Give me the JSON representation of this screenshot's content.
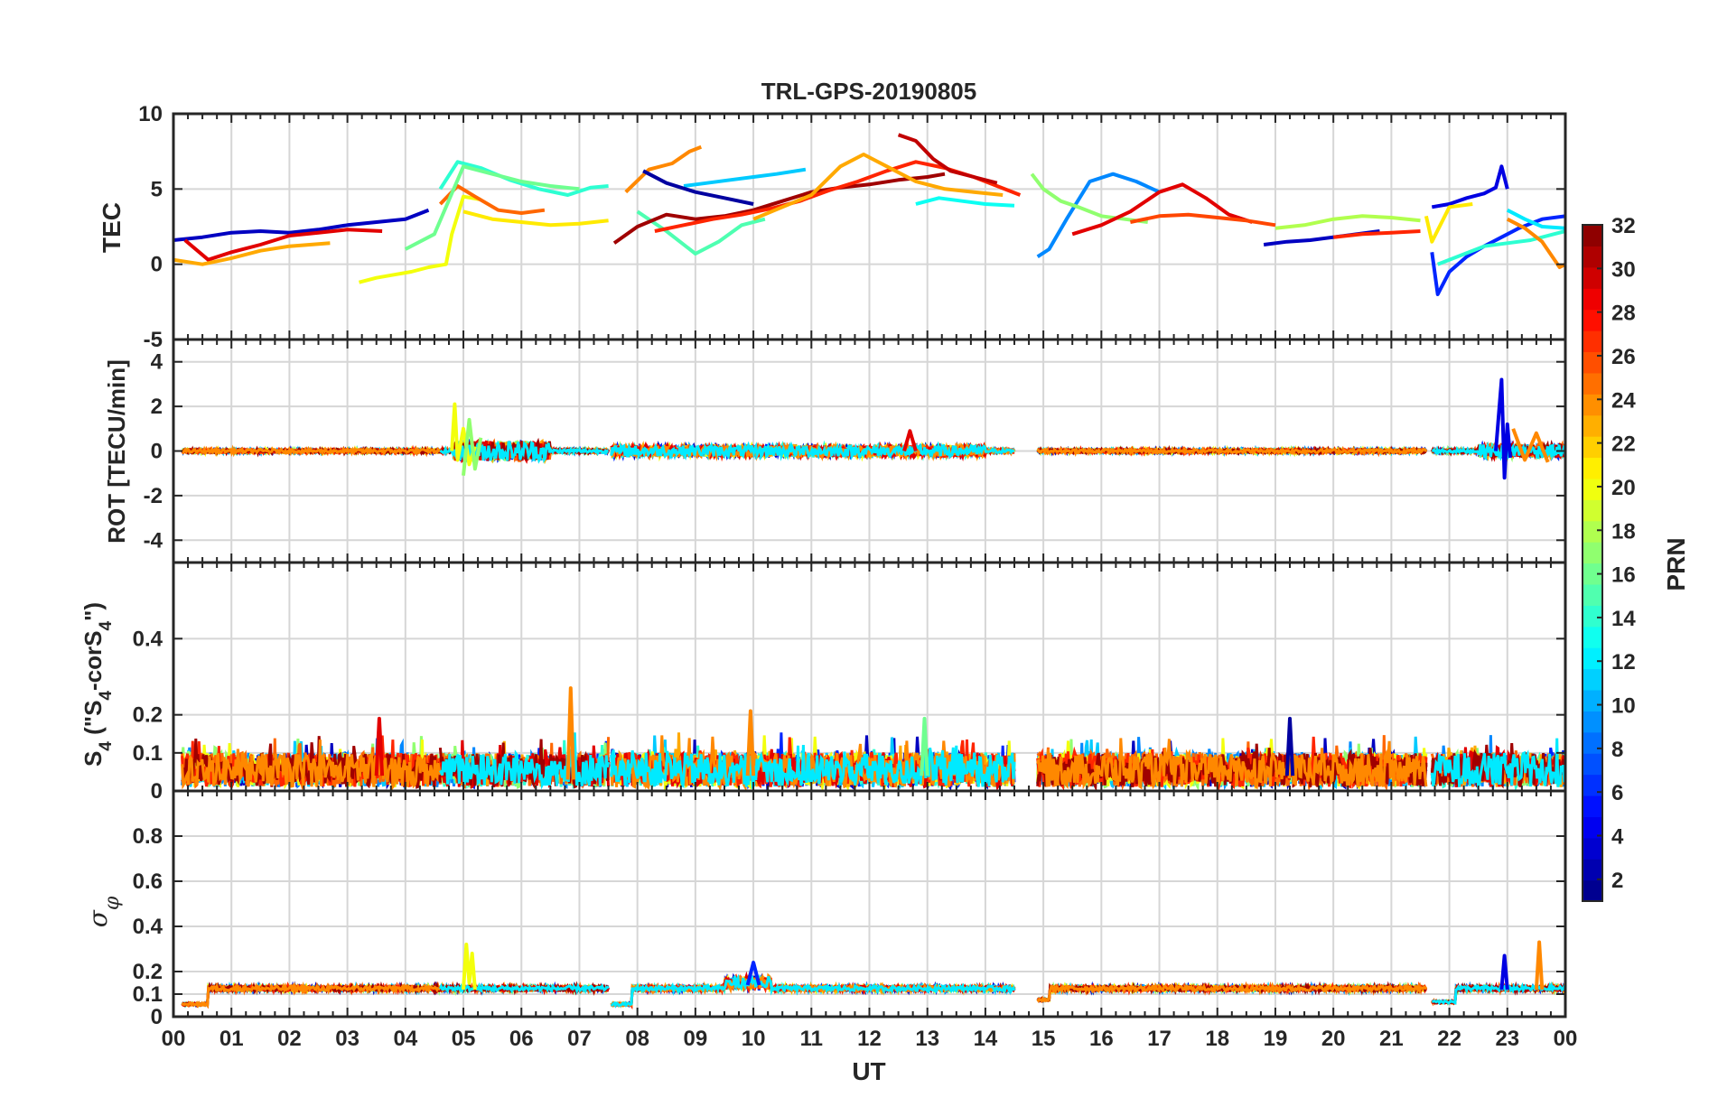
{
  "chart_data": {
    "type": "line",
    "title": "TRL-GPS-20190805",
    "x_axis": {
      "label": "UT",
      "ticks": [
        "00",
        "01",
        "02",
        "03",
        "04",
        "05",
        "06",
        "07",
        "08",
        "09",
        "10",
        "11",
        "12",
        "13",
        "14",
        "15",
        "16",
        "17",
        "18",
        "19",
        "20",
        "21",
        "22",
        "23",
        "00"
      ],
      "range_hours": [
        0,
        24
      ]
    },
    "colorbar": {
      "label": "PRN",
      "range": [
        1,
        32
      ],
      "ticks": [
        "32",
        "30",
        "28",
        "26",
        "24",
        "22",
        "20",
        "18",
        "16",
        "14",
        "12",
        "10",
        "8",
        "6",
        "4",
        "2"
      ],
      "colormap": "jet"
    },
    "panels": [
      {
        "id": "tec",
        "ylabel": "TEC",
        "ylim": [
          -5,
          10
        ],
        "yticks": [
          "10",
          "5",
          "0",
          "-5"
        ],
        "grid": true,
        "series": [
          {
            "prn": 3,
            "x": [
              0.0,
              0.5,
              1.0,
              1.5,
              2.0,
              2.5,
              3.0,
              3.5,
              4.0,
              4.4
            ],
            "y": [
              1.6,
              1.8,
              2.1,
              2.2,
              2.1,
              2.3,
              2.6,
              2.8,
              3.0,
              3.6
            ]
          },
          {
            "prn": 29,
            "x": [
              0.2,
              0.6,
              1.0,
              1.5,
              2.0,
              2.5,
              3.0,
              3.6
            ],
            "y": [
              1.6,
              0.3,
              0.8,
              1.3,
              1.9,
              2.1,
              2.3,
              2.2
            ]
          },
          {
            "prn": 23,
            "x": [
              0.0,
              0.5,
              1.0,
              1.5,
              2.0,
              2.7
            ],
            "y": [
              0.3,
              0.0,
              0.4,
              0.9,
              1.2,
              1.4
            ]
          },
          {
            "prn": 20,
            "x": [
              3.2,
              3.5,
              3.8,
              4.1,
              4.4,
              4.7,
              4.8,
              5.0,
              5.3
            ],
            "y": [
              -1.2,
              -0.9,
              -0.7,
              -0.5,
              -0.2,
              0.0,
              2.0,
              4.5,
              4.3
            ]
          },
          {
            "prn": 14,
            "x": [
              4.6,
              4.9,
              5.3,
              5.8,
              6.3,
              6.8,
              7.2,
              7.5
            ],
            "y": [
              5.0,
              6.8,
              6.4,
              5.6,
              5.0,
              4.6,
              5.1,
              5.2
            ]
          },
          {
            "prn": 25,
            "x": [
              4.6,
              4.9,
              5.2,
              5.6,
              6.0,
              6.4
            ],
            "y": [
              4.0,
              5.2,
              4.5,
              3.6,
              3.4,
              3.6
            ]
          },
          {
            "prn": 16,
            "x": [
              4.0,
              4.5,
              5.0,
              5.5,
              6.0,
              6.5,
              7.0
            ],
            "y": [
              1.0,
              2.0,
              6.5,
              6.0,
              5.5,
              5.2,
              5.0
            ]
          },
          {
            "prn": 21,
            "x": [
              5.0,
              5.5,
              6.0,
              6.5,
              7.0,
              7.5
            ],
            "y": [
              3.5,
              3.0,
              2.8,
              2.6,
              2.7,
              2.9
            ]
          },
          {
            "prn": 24,
            "x": [
              7.8,
              8.2,
              8.6,
              8.9,
              9.1
            ],
            "y": [
              4.8,
              6.3,
              6.7,
              7.5,
              7.8
            ]
          },
          {
            "prn": 11,
            "x": [
              8.8,
              9.2,
              9.6,
              10.0,
              10.4,
              10.9
            ],
            "y": [
              5.2,
              5.4,
              5.6,
              5.8,
              6.0,
              6.3
            ]
          },
          {
            "prn": 2,
            "x": [
              8.1,
              8.5,
              9.0,
              9.5,
              10.0
            ],
            "y": [
              6.2,
              5.4,
              4.8,
              4.4,
              4.0
            ]
          },
          {
            "prn": 15,
            "x": [
              8.0,
              8.5,
              9.0,
              9.4,
              9.8,
              10.2
            ],
            "y": [
              3.5,
              2.2,
              0.7,
              1.5,
              2.6,
              3.0
            ]
          },
          {
            "prn": 31,
            "x": [
              7.6,
              8.0,
              8.5,
              9.0,
              9.5,
              10.0,
              10.5,
              11.0,
              11.5,
              12.0,
              12.5,
              13.0,
              13.3
            ],
            "y": [
              1.4,
              2.5,
              3.3,
              3.0,
              3.2,
              3.6,
              4.2,
              4.8,
              5.1,
              5.3,
              5.6,
              5.8,
              6.0
            ]
          },
          {
            "prn": 27,
            "x": [
              8.3,
              8.8,
              9.3,
              9.8,
              10.3,
              10.8,
              11.3,
              11.8,
              12.3,
              12.8,
              13.3,
              13.8,
              14.2,
              14.6
            ],
            "y": [
              2.2,
              2.6,
              3.0,
              3.3,
              3.7,
              4.2,
              4.9,
              5.5,
              6.2,
              6.8,
              6.4,
              5.8,
              5.2,
              4.6
            ]
          },
          {
            "prn": 30,
            "x": [
              12.5,
              12.8,
              13.1,
              13.4,
              13.8,
              14.2
            ],
            "y": [
              8.6,
              8.2,
              7.0,
              6.2,
              5.8,
              5.4
            ]
          },
          {
            "prn": 23,
            "x": [
              10.0,
              10.5,
              11.0,
              11.5,
              11.9,
              12.3,
              12.8,
              13.3,
              13.8,
              14.3
            ],
            "y": [
              3.0,
              3.8,
              4.6,
              6.5,
              7.3,
              6.5,
              5.5,
              5.0,
              4.8,
              4.6
            ]
          },
          {
            "prn": 13,
            "x": [
              12.8,
              13.2,
              13.6,
              14.0,
              14.5
            ],
            "y": [
              4.0,
              4.4,
              4.2,
              4.0,
              3.9
            ]
          },
          {
            "prn": 9,
            "x": [
              14.9,
              15.1,
              15.4,
              15.8,
              16.2,
              16.6,
              17.0
            ],
            "y": [
              0.5,
              1.0,
              3.0,
              5.5,
              6.0,
              5.5,
              4.8
            ]
          },
          {
            "prn": 17,
            "x": [
              14.8,
              15.0,
              15.3,
              15.6,
              16.0,
              16.4,
              16.8
            ],
            "y": [
              6.0,
              5.0,
              4.2,
              3.8,
              3.2,
              3.0,
              2.8
            ]
          },
          {
            "prn": 29,
            "x": [
              15.5,
              16.0,
              16.5,
              17.0,
              17.4,
              17.8,
              18.2,
              18.6
            ],
            "y": [
              2.0,
              2.6,
              3.5,
              4.8,
              5.3,
              4.4,
              3.3,
              2.8
            ]
          },
          {
            "prn": 26,
            "x": [
              16.5,
              17.0,
              17.5,
              18.0,
              18.5,
              19.0
            ],
            "y": [
              2.8,
              3.2,
              3.3,
              3.1,
              2.9,
              2.6
            ]
          },
          {
            "prn": 3,
            "x": [
              18.8,
              19.2,
              19.6,
              20.0,
              20.4,
              20.8
            ],
            "y": [
              1.3,
              1.5,
              1.6,
              1.8,
              2.0,
              2.2
            ]
          },
          {
            "prn": 18,
            "x": [
              19.0,
              19.5,
              20.0,
              20.5,
              21.0,
              21.5
            ],
            "y": [
              2.4,
              2.6,
              3.0,
              3.2,
              3.1,
              2.9
            ]
          },
          {
            "prn": 27,
            "x": [
              20.0,
              20.5,
              21.0,
              21.5
            ],
            "y": [
              1.8,
              2.0,
              2.1,
              2.2
            ]
          },
          {
            "prn": 4,
            "x": [
              21.7,
              22.0,
              22.3,
              22.6,
              22.8,
              22.9,
              23.0
            ],
            "y": [
              3.8,
              4.0,
              4.4,
              4.7,
              5.1,
              6.5,
              5.0
            ]
          },
          {
            "prn": 6,
            "x": [
              21.7,
              21.8,
              22.0,
              22.3,
              22.6,
              22.9,
              23.2,
              23.6,
              24.0
            ],
            "y": [
              0.8,
              -2.0,
              -0.5,
              0.5,
              1.2,
              1.8,
              2.4,
              3.0,
              3.2
            ]
          },
          {
            "prn": 14,
            "x": [
              21.8,
              22.2,
              22.6,
              23.0,
              23.4,
              23.8,
              24.0
            ],
            "y": [
              0.0,
              0.6,
              1.2,
              1.4,
              1.6,
              2.0,
              2.2
            ]
          },
          {
            "prn": 21,
            "x": [
              21.6,
              21.7,
              22.0,
              22.4
            ],
            "y": [
              3.2,
              1.5,
              3.8,
              4.0
            ]
          },
          {
            "prn": 24,
            "x": [
              23.0,
              23.3,
              23.6,
              23.9,
              24.0
            ],
            "y": [
              3.0,
              2.4,
              1.5,
              -0.2,
              0.0
            ]
          },
          {
            "prn": 12,
            "x": [
              23.0,
              23.3,
              23.6,
              24.0
            ],
            "y": [
              3.6,
              3.0,
              2.5,
              2.4
            ]
          }
        ]
      },
      {
        "id": "rot",
        "ylabel": "ROT [TECU/min]",
        "ylim": [
          -5,
          5
        ],
        "yticks": [
          "4",
          "2",
          "0",
          "-2",
          "-4"
        ],
        "grid": true,
        "series": [
          {
            "prn": 20,
            "x": [
              4.8,
              4.85,
              4.9,
              5.0,
              5.1,
              5.2
            ],
            "y": [
              0.0,
              2.1,
              -0.4,
              1.0,
              -0.6,
              0.2
            ]
          },
          {
            "prn": 17,
            "x": [
              5.0,
              5.1,
              5.2,
              5.3
            ],
            "y": [
              -1.1,
              1.4,
              -0.8,
              0.6
            ]
          },
          {
            "prn": 4,
            "x": [
              22.8,
              22.9,
              22.95,
              23.0,
              23.05
            ],
            "y": [
              0.0,
              3.2,
              -1.2,
              1.2,
              -0.3
            ]
          },
          {
            "prn": 24,
            "x": [
              23.1,
              23.3,
              23.5,
              23.7
            ],
            "y": [
              1.0,
              -0.4,
              0.8,
              -0.5
            ]
          },
          {
            "prn": 29,
            "x": [
              12.6,
              12.7,
              12.8
            ],
            "y": [
              0.0,
              0.9,
              0.0
            ]
          }
        ]
      },
      {
        "id": "s4",
        "ylabel": "S4 (\"S4-corS4\")",
        "ylim": [
          0,
          0.6
        ],
        "yticks": [
          "0.4",
          "0.2",
          "0.1",
          "0"
        ],
        "grid": true,
        "series": [
          {
            "prn": 24,
            "x": [
              6.8,
              6.85,
              6.9
            ],
            "y": [
              0.03,
              0.27,
              0.03
            ]
          },
          {
            "prn": 24,
            "x": [
              9.9,
              9.95,
              10.0
            ],
            "y": [
              0.04,
              0.21,
              0.04
            ]
          },
          {
            "prn": 29,
            "x": [
              3.5,
              3.55,
              3.6
            ],
            "y": [
              0.04,
              0.19,
              0.04
            ]
          },
          {
            "prn": 2,
            "x": [
              19.2,
              19.25,
              19.3
            ],
            "y": [
              0.04,
              0.19,
              0.04
            ]
          },
          {
            "prn": 16,
            "x": [
              12.9,
              12.95,
              13.0
            ],
            "y": [
              0.04,
              0.19,
              0.04
            ]
          }
        ]
      },
      {
        "id": "sigma_phi",
        "ylabel": "σφ",
        "ylim": [
          0,
          1
        ],
        "yticks": [
          "0.8",
          "0.6",
          "0.4",
          "0.2",
          "0.1",
          "0"
        ],
        "grid": true,
        "series": [
          {
            "prn": 20,
            "x": [
              5.0,
              5.05,
              5.1,
              5.15,
              5.2
            ],
            "y": [
              0.12,
              0.32,
              0.15,
              0.28,
              0.12
            ]
          },
          {
            "prn": 4,
            "x": [
              22.9,
              22.95,
              23.0
            ],
            "y": [
              0.12,
              0.27,
              0.12
            ]
          },
          {
            "prn": 24,
            "x": [
              23.5,
              23.55,
              23.6
            ],
            "y": [
              0.12,
              0.33,
              0.12
            ]
          },
          {
            "prn": 6,
            "x": [
              9.9,
              10.0,
              10.1
            ],
            "y": [
              0.14,
              0.24,
              0.14
            ]
          }
        ]
      }
    ]
  }
}
